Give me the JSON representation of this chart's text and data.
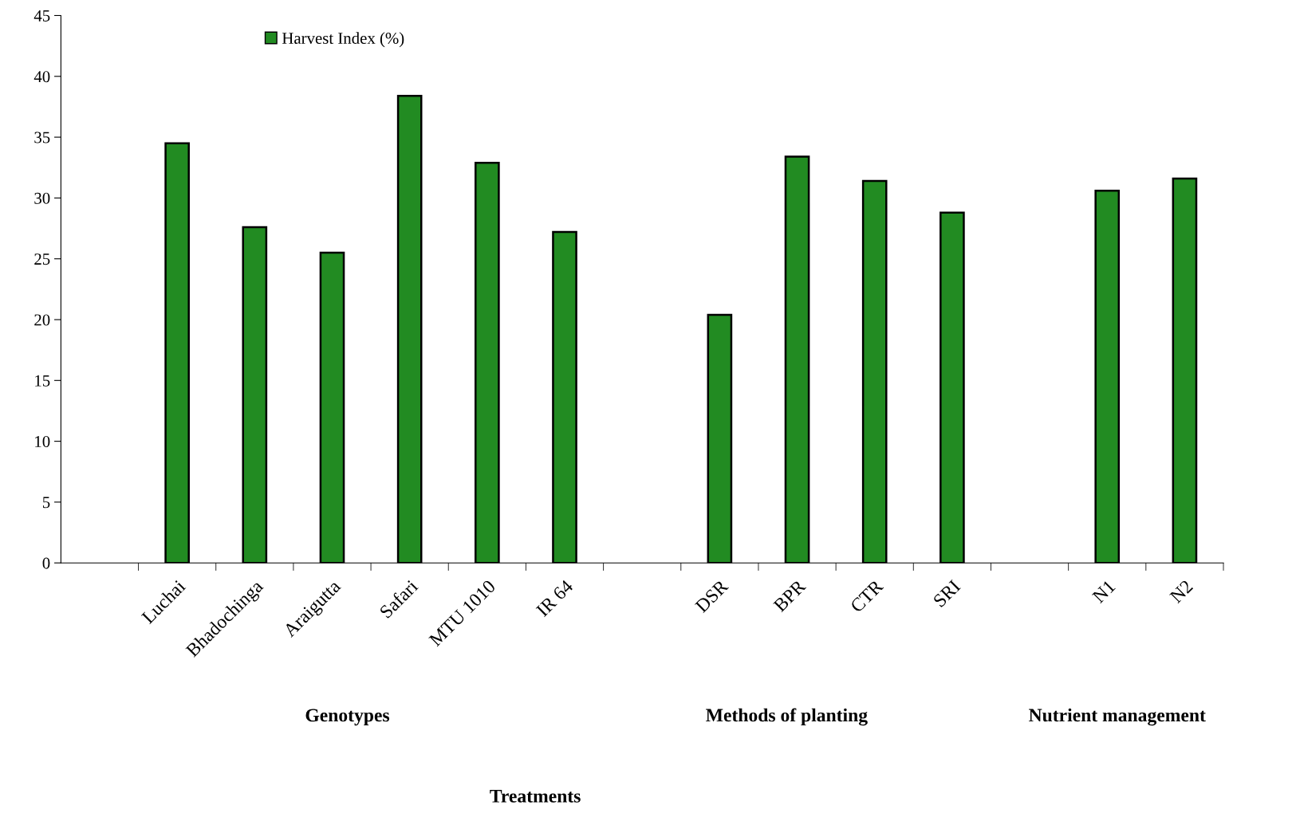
{
  "chart_data": {
    "type": "bar",
    "categories": [
      null,
      "Luchai",
      "Bhadochinga",
      "Araigutta",
      "Safari",
      "MTU 1010",
      "IR 64",
      null,
      "DSR",
      "BPR",
      "CTR",
      "SRI",
      null,
      "N1",
      "N2"
    ],
    "series": [
      {
        "name": "Harvest Index (%)",
        "color": "#228b22",
        "values": [
          null,
          34.5,
          27.6,
          25.5,
          38.4,
          32.9,
          27.2,
          null,
          20.4,
          33.4,
          31.4,
          28.8,
          null,
          30.6,
          31.6
        ]
      }
    ],
    "ylim": [
      0,
      45
    ],
    "yticks": [
      0,
      5,
      10,
      15,
      20,
      25,
      30,
      35,
      40,
      45
    ],
    "grid": false,
    "legend": "top left",
    "annotations": [
      "Genotypes",
      "Methods of planting",
      "Nutrient management",
      "Treatments"
    ]
  }
}
